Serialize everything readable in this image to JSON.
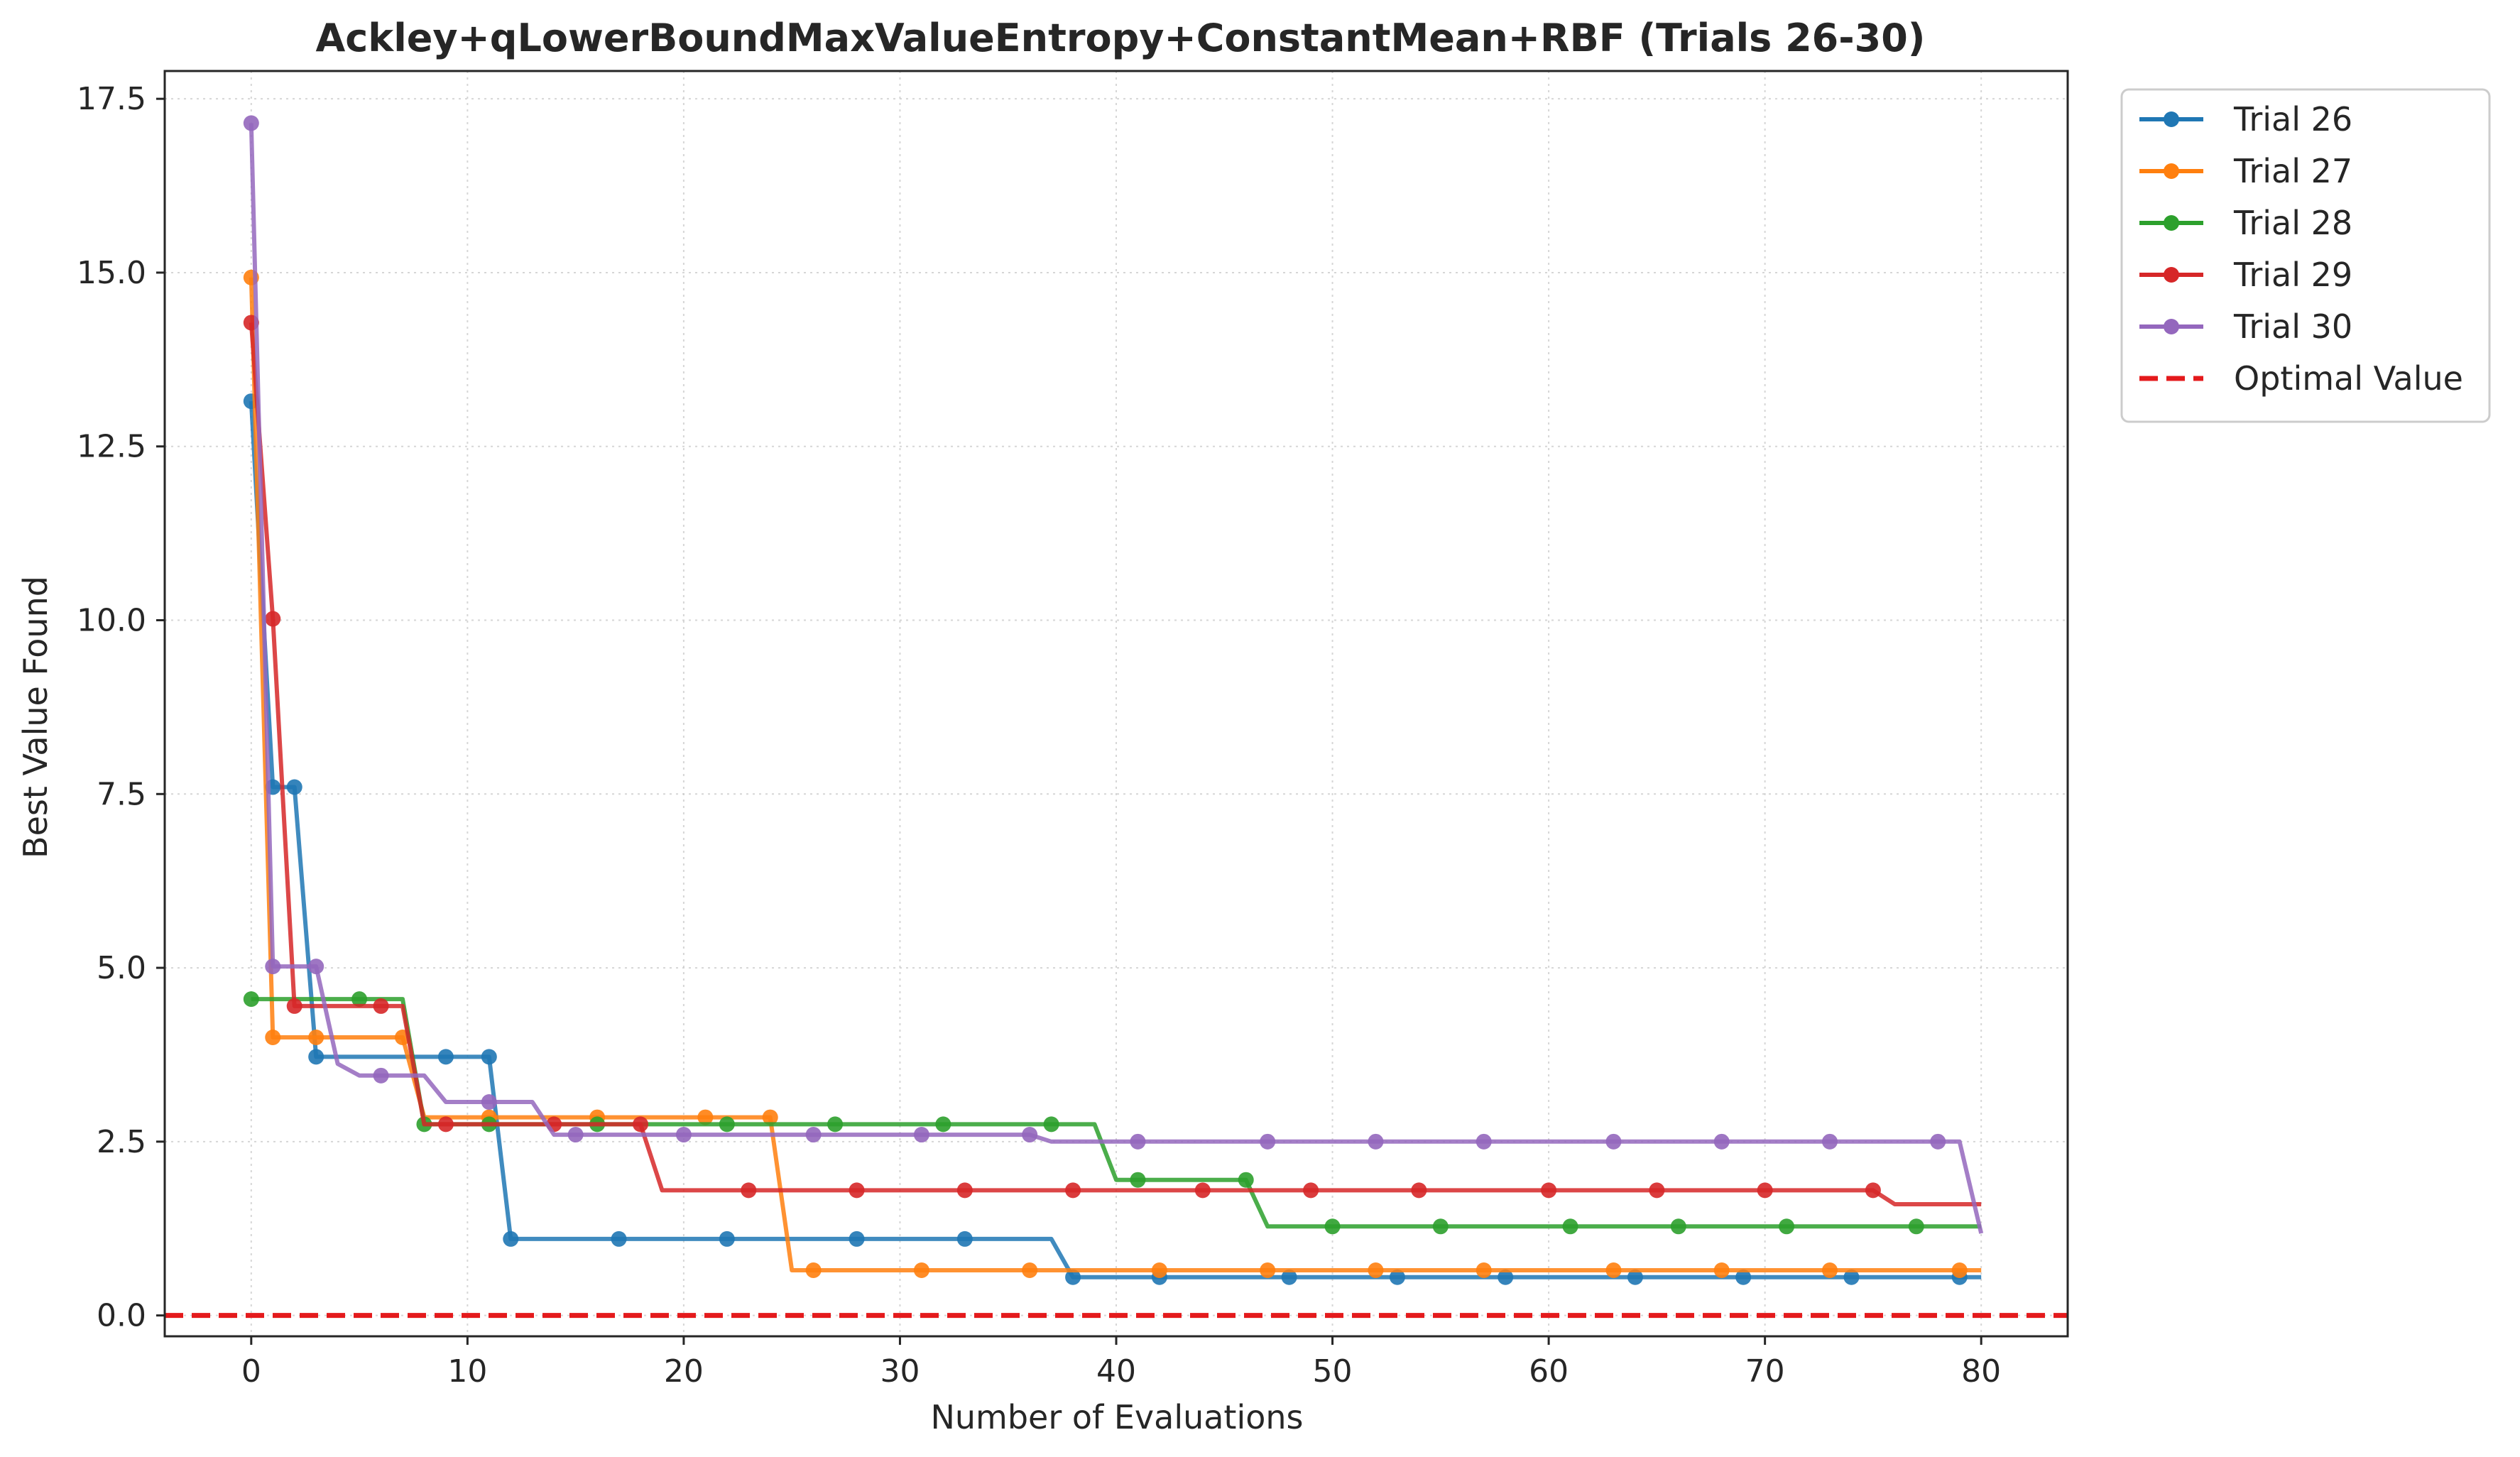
{
  "chart_data": {
    "type": "line",
    "title": "Ackley+qLowerBoundMaxValueEntropy+ConstantMean+RBF (Trials 26-30)",
    "xlabel": "Number of Evaluations",
    "ylabel": "Best Value Found",
    "xlim": [
      -4,
      84
    ],
    "ylim": [
      -0.3,
      17.9
    ],
    "xticks": [
      0,
      10,
      20,
      30,
      40,
      50,
      60,
      70,
      80
    ],
    "xtick_labels": [
      "0",
      "10",
      "20",
      "30",
      "40",
      "50",
      "60",
      "70",
      "80"
    ],
    "yticks": [
      0,
      2.5,
      5,
      7.5,
      10,
      12.5,
      15,
      17.5
    ],
    "ytick_labels": [
      "0.0",
      "2.5",
      "5.0",
      "7.5",
      "10.0",
      "12.5",
      "15.0",
      "17.5"
    ],
    "grid": true,
    "legend_position": "outside-top-right",
    "optimal_value": 0,
    "optimal_label": "Optimal Value",
    "optimal_color": "#e41a1c",
    "series": [
      {
        "name": "Trial 26",
        "color": "#1f77b4",
        "steps": [
          [
            0,
            13.15
          ],
          [
            1,
            7.6
          ],
          [
            3,
            3.72
          ],
          [
            12,
            1.1
          ],
          [
            38,
            0.55
          ]
        ],
        "markers": [
          0,
          1,
          2,
          3,
          9,
          11,
          12,
          17,
          22,
          28,
          33,
          38,
          42,
          48,
          53,
          58,
          64,
          69,
          74,
          79
        ]
      },
      {
        "name": "Trial 27",
        "color": "#ff7f0e",
        "steps": [
          [
            0,
            14.93
          ],
          [
            1,
            4.0
          ],
          [
            8,
            2.85
          ],
          [
            25,
            0.65
          ]
        ],
        "markers": [
          0,
          1,
          3,
          7,
          11,
          16,
          21,
          24,
          26,
          31,
          36,
          42,
          47,
          52,
          57,
          63,
          68,
          73,
          79
        ]
      },
      {
        "name": "Trial 28",
        "color": "#2ca02c",
        "steps": [
          [
            0,
            4.55
          ],
          [
            8,
            2.75
          ],
          [
            40,
            1.95
          ],
          [
            47,
            1.28
          ]
        ],
        "markers": [
          0,
          5,
          8,
          11,
          16,
          22,
          27,
          32,
          37,
          41,
          46,
          50,
          55,
          61,
          66,
          71,
          77
        ]
      },
      {
        "name": "Trial 29",
        "color": "#d62728",
        "steps": [
          [
            0,
            14.28
          ],
          [
            1,
            10.02
          ],
          [
            2,
            4.45
          ],
          [
            8,
            2.75
          ],
          [
            19,
            1.8
          ],
          [
            76,
            1.6
          ]
        ],
        "markers": [
          0,
          1,
          2,
          6,
          9,
          14,
          18,
          23,
          28,
          33,
          38,
          44,
          49,
          54,
          60,
          65,
          70,
          75
        ]
      },
      {
        "name": "Trial 30",
        "color": "#9467bd",
        "steps": [
          [
            0,
            17.15
          ],
          [
            1,
            5.02
          ],
          [
            4,
            3.62
          ],
          [
            5,
            3.45
          ],
          [
            9,
            3.07
          ],
          [
            14,
            2.6
          ],
          [
            37,
            2.5
          ],
          [
            80,
            1.18
          ]
        ],
        "markers": [
          0,
          1,
          3,
          6,
          11,
          15,
          20,
          26,
          31,
          36,
          41,
          47,
          52,
          57,
          63,
          68,
          73,
          78
        ]
      }
    ],
    "x_max": 80
  }
}
